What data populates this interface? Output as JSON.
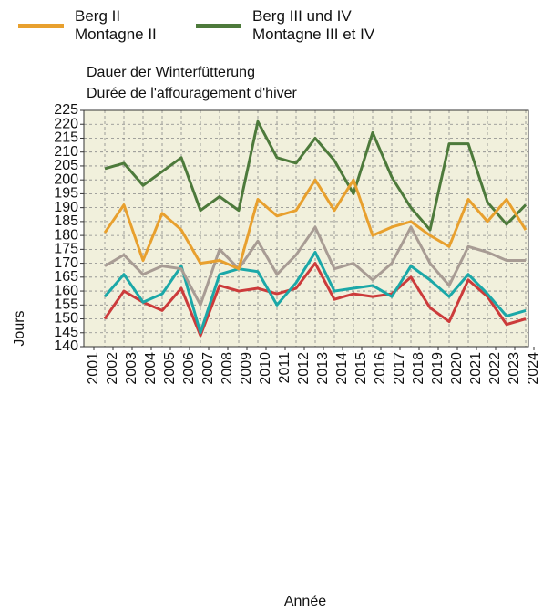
{
  "chart_data": {
    "type": "line",
    "title": "Dauer der Winterfütterung",
    "subtitle": "Durée de l'affouragement d'hiver",
    "xlabel": "Année",
    "ylabel": "Jours",
    "categories": [
      "2001",
      "2002",
      "2003",
      "2004",
      "2005",
      "2006",
      "2007",
      "2008",
      "2009",
      "2010",
      "2011",
      "2012",
      "2013",
      "2014",
      "2015",
      "2016",
      "2017",
      "2018",
      "2019",
      "2020",
      "2021",
      "2022",
      "2023",
      "2024"
    ],
    "series": [
      {
        "name": "Berg II\nMontagne II",
        "color": "#e8a02e",
        "values": [
          null,
          181,
          191,
          171,
          188,
          182,
          170,
          171,
          168,
          193,
          187,
          189,
          200,
          189,
          200,
          180,
          183,
          185,
          180,
          176,
          193,
          185,
          193,
          182
        ]
      },
      {
        "name": "Berg III und IV\nMontagne III et IV",
        "color": "#4d7a3b",
        "values": [
          null,
          204,
          206,
          198,
          203,
          208,
          189,
          194,
          189,
          221,
          208,
          206,
          215,
          207,
          195,
          217,
          201,
          190,
          182,
          213,
          213,
          192,
          184,
          191
        ]
      },
      {
        "color": "#a89c94",
        "values": [
          null,
          169,
          173,
          166,
          169,
          168,
          155,
          175,
          168,
          178,
          166,
          173,
          183,
          168,
          170,
          164,
          170,
          183,
          170,
          162,
          176,
          174,
          171,
          171
        ]
      },
      {
        "color": "#1ba8a8",
        "values": [
          null,
          158,
          166,
          156,
          159,
          169,
          145,
          166,
          168,
          167,
          155,
          163,
          174,
          160,
          161,
          162,
          158,
          169,
          164,
          158,
          166,
          159,
          151,
          153
        ]
      },
      {
        "color": "#cc3b3b",
        "values": [
          null,
          150,
          160,
          156,
          153,
          161,
          144,
          162,
          160,
          161,
          159,
          161,
          170,
          157,
          159,
          158,
          159,
          165,
          154,
          149,
          164,
          158,
          148,
          150
        ]
      }
    ],
    "ylim": [
      140,
      225
    ],
    "yticks": [
      140,
      145,
      150,
      155,
      160,
      165,
      170,
      175,
      180,
      185,
      190,
      195,
      200,
      205,
      210,
      215,
      220,
      225
    ],
    "grid": true
  }
}
